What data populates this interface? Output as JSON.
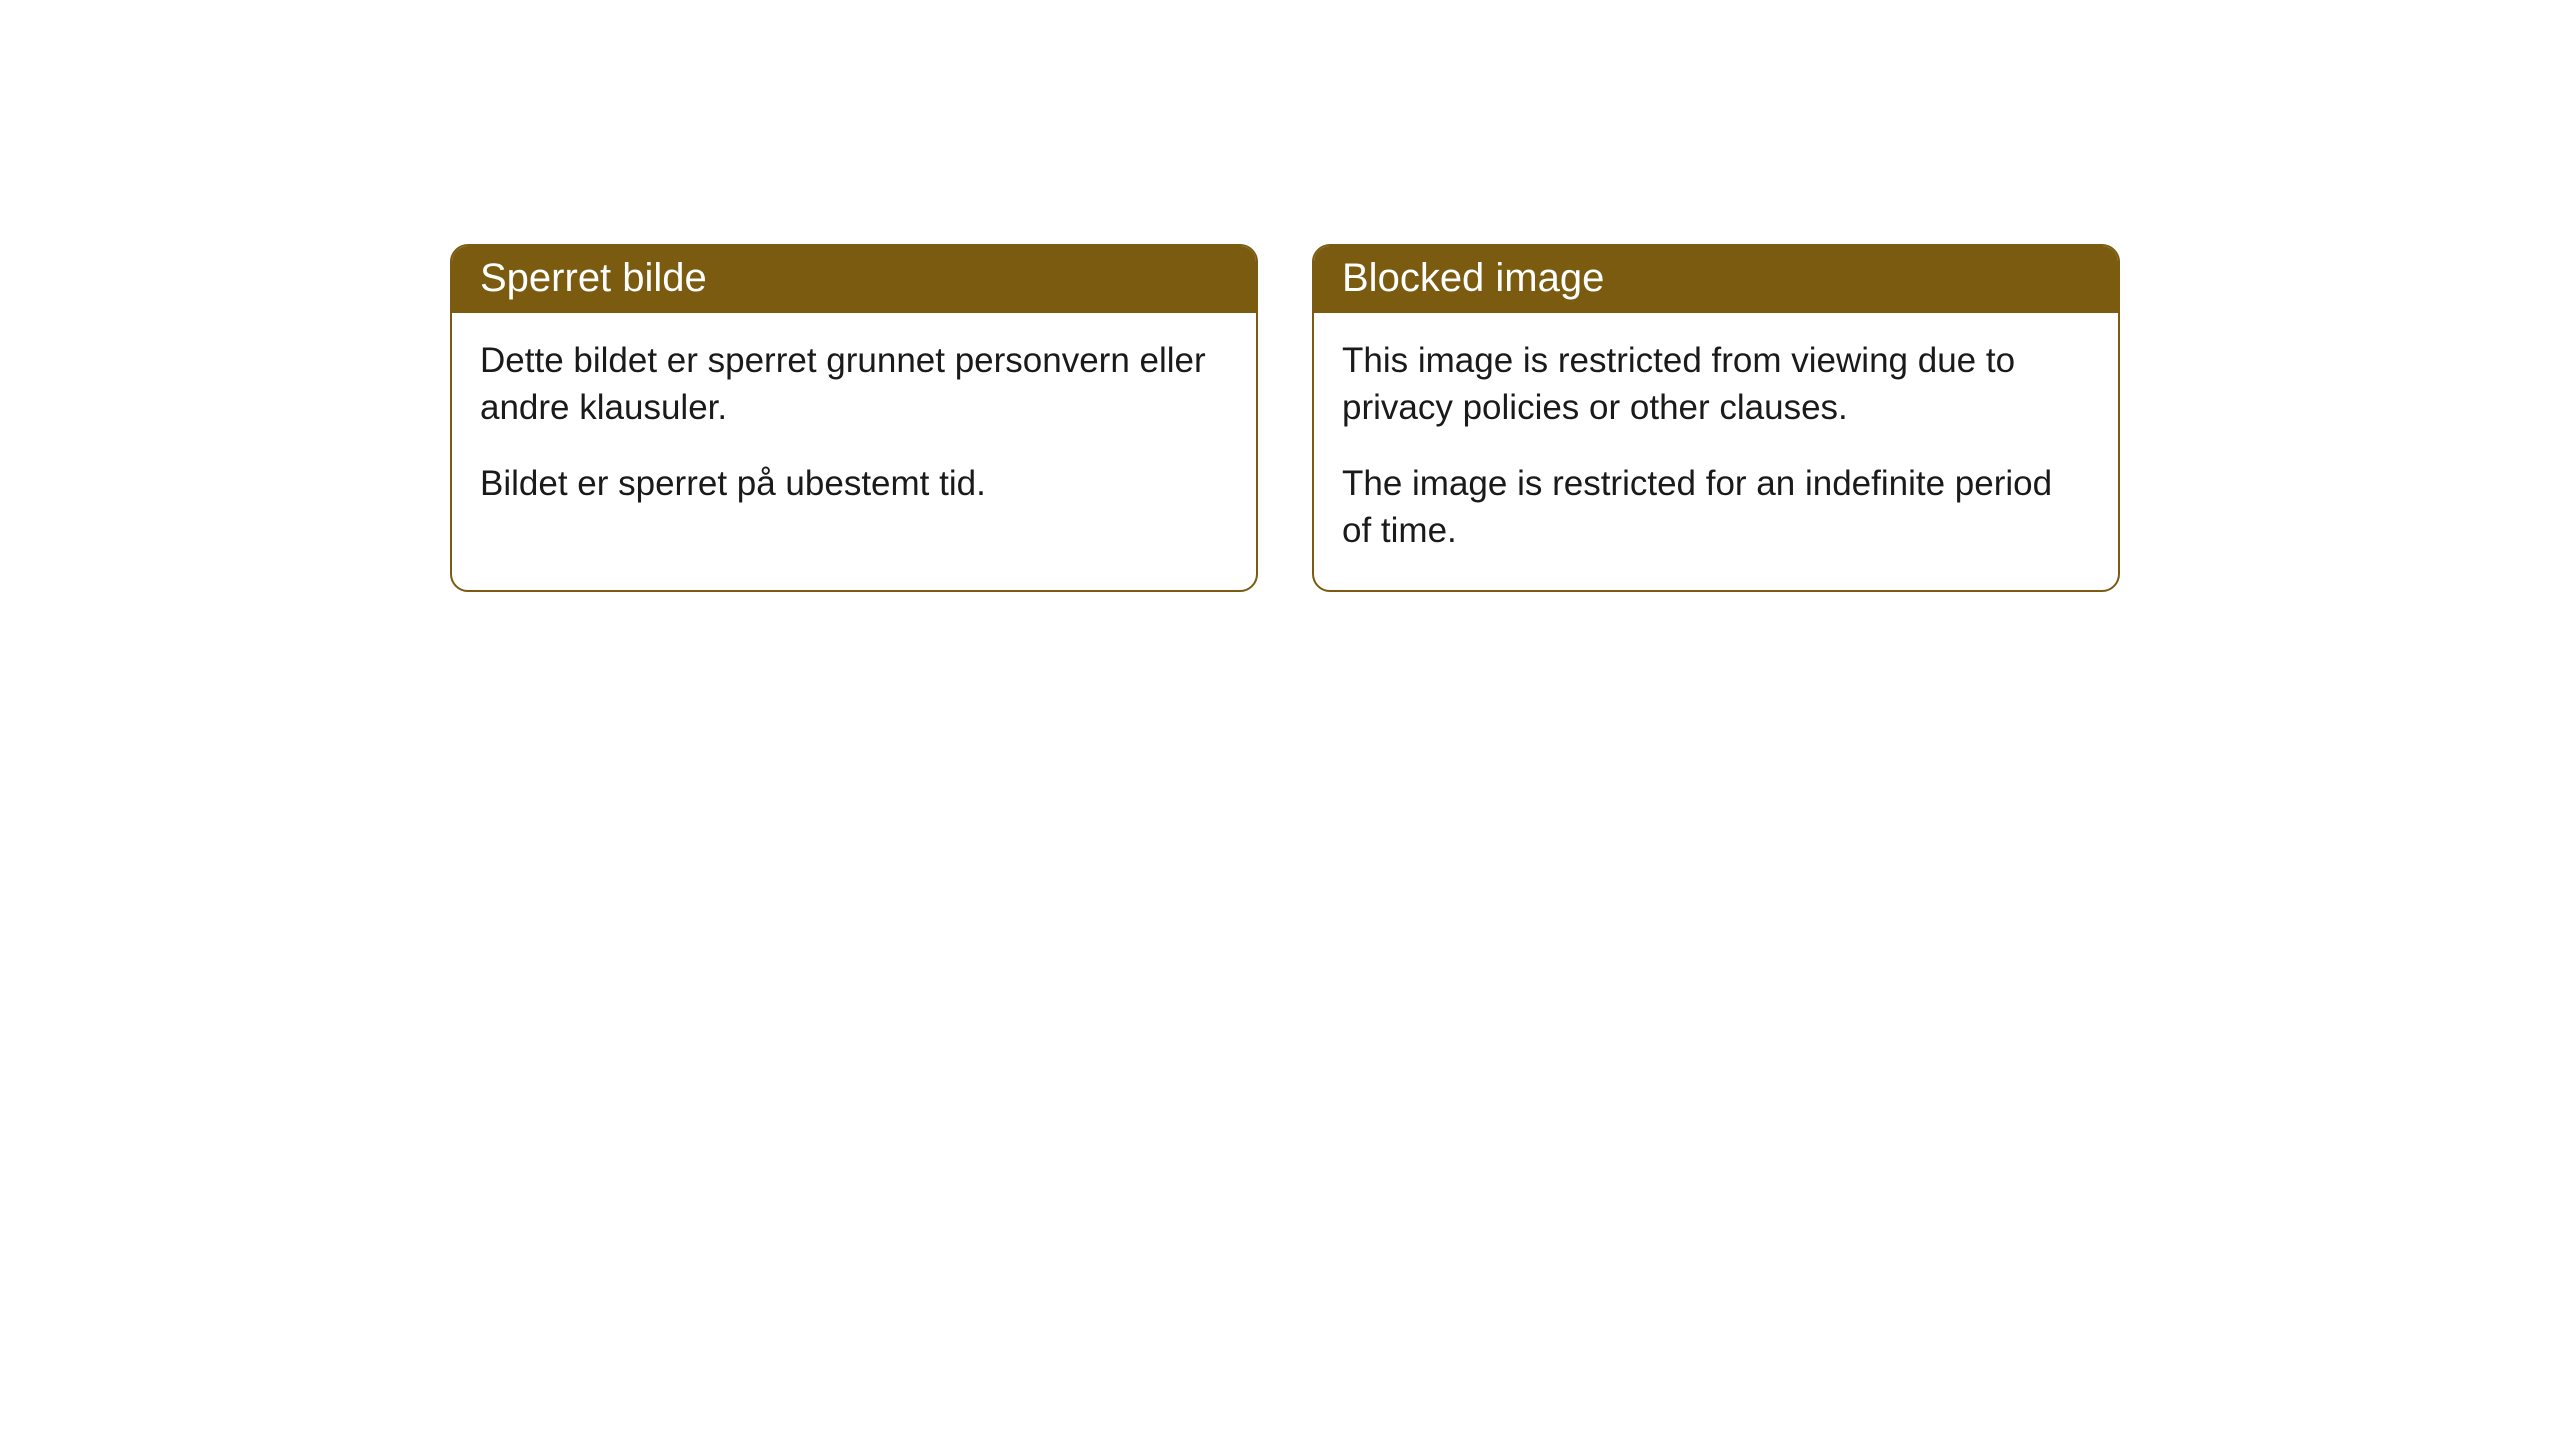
{
  "cards": [
    {
      "title": "Sperret bilde",
      "paragraph1": "Dette bildet er sperret grunnet personvern eller andre klausuler.",
      "paragraph2": "Bildet er sperret på ubestemt tid."
    },
    {
      "title": "Blocked image",
      "paragraph1": "This image is restricted from viewing due to privacy policies or other clauses.",
      "paragraph2": "The image is restricted for an indefinite period of time."
    }
  ],
  "style": {
    "header_bg": "#7a5b10",
    "header_text_color": "#ffffff",
    "border_color": "#7a5b10",
    "body_bg": "#ffffff",
    "body_text_color": "#1a1a1a",
    "border_radius": "18px",
    "header_font_size": "40px",
    "body_font_size": "35px"
  }
}
